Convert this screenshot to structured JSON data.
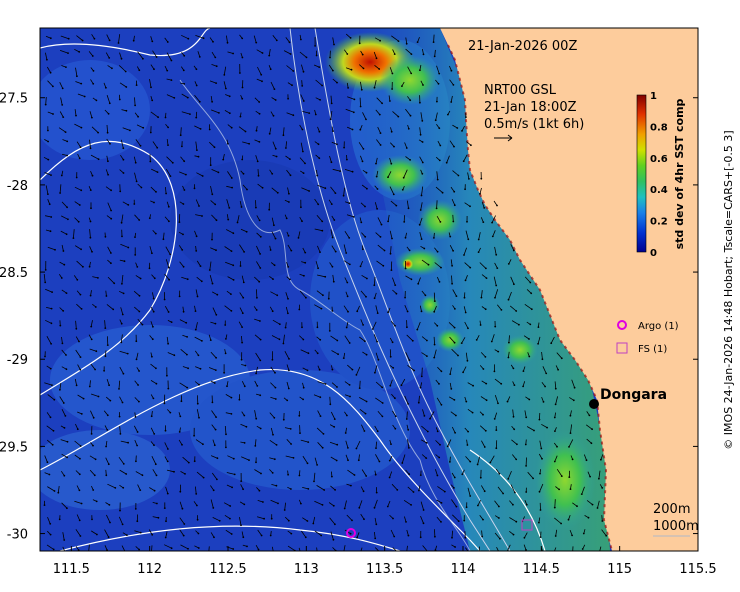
{
  "map": {
    "date_label": "21-Jan-2026 00Z",
    "current_source": "NRT00 GSL",
    "current_time": "21-Jan 18:00Z",
    "vector_scale": "0.5m/s (1kt 6h)",
    "place_name": "Dongara",
    "contours_legend": [
      "200m",
      "1000m"
    ],
    "credit": "© IMOS 24-Jan-2026 14:48 Hobart; Tscale=CARS+[-0.5 3]"
  },
  "axes": {
    "x_ticks": [
      "111.5",
      "112",
      "112.5",
      "113",
      "113.5",
      "114",
      "114.5",
      "115",
      "115.5"
    ],
    "y_ticks": [
      "-27.5",
      "-28",
      "-28.5",
      "-29",
      "-29.5",
      "-30"
    ],
    "x_range": [
      111.3,
      115.5
    ],
    "y_range": [
      -30.1,
      -27.1
    ]
  },
  "colorbar": {
    "label": "std dev of 4hr SST comp",
    "ticks": [
      "0",
      "0.2",
      "0.4",
      "0.6",
      "0.8",
      "1"
    ]
  },
  "legend": {
    "argo_label": "Argo (1)",
    "fs_label": "FS (1)"
  },
  "colors": {
    "land": "#fdcc9c",
    "ocean_deep": "#1c3fbf",
    "argo": "#e000e0",
    "fs": "#c040c0"
  }
}
